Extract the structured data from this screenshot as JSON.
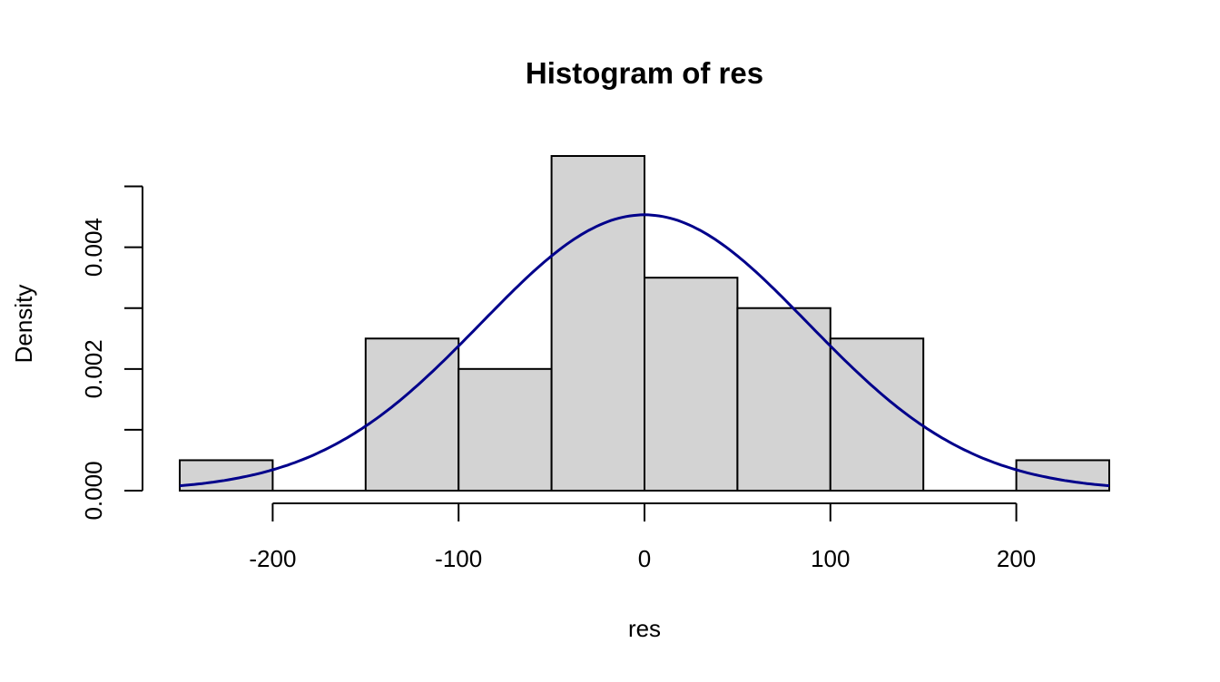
{
  "chart_data": {
    "type": "bar",
    "title": "Histogram of res",
    "xlabel": "res",
    "ylabel": "Density",
    "bin_edges": [
      -250,
      -200,
      -150,
      -100,
      -50,
      0,
      50,
      100,
      150,
      200,
      250
    ],
    "values": [
      0.0005,
      0.0,
      0.0025,
      0.002,
      0.0055,
      0.0035,
      0.003,
      0.0025,
      0.0,
      0.0005
    ],
    "x_ticks": [
      -200,
      -100,
      0,
      100,
      200
    ],
    "x_tick_labels": [
      "-200",
      "-100",
      "0",
      "100",
      "200"
    ],
    "y_ticks": [
      0.0,
      0.001,
      0.002,
      0.003,
      0.004,
      0.005
    ],
    "y_tick_labels": [
      "0.000",
      "",
      "0.002",
      "",
      "0.004",
      ""
    ],
    "xlim": [
      -250,
      250
    ],
    "ylim": [
      0,
      0.0055
    ],
    "bar_fill": "#d3d3d3",
    "bar_stroke": "#000000",
    "grid": false,
    "overlay": {
      "type": "line",
      "kind": "normal density curve",
      "mean": 0,
      "sd": 88,
      "color": "#00008b"
    }
  }
}
